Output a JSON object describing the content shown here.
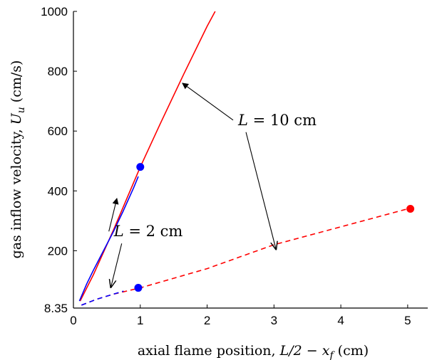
{
  "chart_data": {
    "type": "line",
    "xlabel": {
      "prefix": "axial flame position, ",
      "math": "L/2 − x",
      "math_sub": "f",
      "suffix": " (cm)"
    },
    "ylabel": {
      "prefix": "gas inflow velocity, ",
      "math": "U",
      "math_sub": "u",
      "suffix": " (cm/s)"
    },
    "xlim": [
      0,
      5.3
    ],
    "ylim": [
      8.35,
      1000
    ],
    "xticks": [
      0,
      1,
      2,
      3,
      4,
      5
    ],
    "yticks": [
      8.35,
      200,
      400,
      600,
      800,
      1000
    ],
    "ytick_labels": [
      "8.35",
      "200",
      "400",
      "600",
      "800",
      "1000"
    ],
    "grid": false,
    "series": [
      {
        "color": "#ff0000",
        "style": "solid",
        "points": [
          [
            0.1,
            32
          ],
          [
            0.3,
            120
          ],
          [
            0.6,
            270
          ],
          [
            0.8,
            375
          ],
          [
            1.0,
            480
          ],
          [
            1.3,
            625
          ],
          [
            1.65,
            790
          ],
          [
            2.0,
            950
          ],
          [
            2.12,
            1000
          ]
        ]
      },
      {
        "color": "#0000ff",
        "style": "solid",
        "points": [
          [
            0.09,
            32
          ],
          [
            0.14,
            58
          ],
          [
            0.2,
            90
          ],
          [
            0.3,
            135
          ],
          [
            0.45,
            200
          ],
          [
            0.6,
            265
          ],
          [
            0.75,
            335
          ],
          [
            0.9,
            410
          ],
          [
            0.97,
            448
          ]
        ]
      },
      {
        "color": "#ff0000",
        "style": "dashed",
        "points": [
          [
            0.12,
            18
          ],
          [
            0.35,
            38
          ],
          [
            0.6,
            55
          ],
          [
            1.0,
            76
          ],
          [
            1.5,
            108
          ],
          [
            2.0,
            140
          ],
          [
            2.5,
            180
          ],
          [
            3.0,
            220
          ],
          [
            3.5,
            250
          ],
          [
            4.0,
            280
          ],
          [
            4.5,
            310
          ],
          [
            5.0,
            340
          ]
        ]
      },
      {
        "color": "#0000ff",
        "style": "dashed",
        "points": [
          [
            0.12,
            18
          ],
          [
            0.35,
            38
          ],
          [
            0.6,
            55
          ],
          [
            0.75,
            65
          ]
        ]
      }
    ],
    "markers": [
      {
        "x": 1.0,
        "y": 480,
        "color": "#0000ff"
      },
      {
        "x": 0.97,
        "y": 76,
        "color": "#0000ff"
      },
      {
        "x": 5.04,
        "y": 340,
        "color": "#ff0000"
      }
    ],
    "annotations": [
      {
        "label_prefix": "L",
        "label_suffix": " = 10 cm",
        "text_pos": [
          3.05,
          620
        ],
        "arrows": [
          {
            "to": [
              1.63,
              760
            ],
            "head": "filled"
          },
          {
            "to": [
              3.03,
              205
            ],
            "head": "open"
          }
        ]
      },
      {
        "label_prefix": "L",
        "label_suffix": " = 2 cm",
        "text_pos": [
          1.12,
          248
        ],
        "arrows": [
          {
            "to": [
              0.65,
              375
            ],
            "head": "filled"
          },
          {
            "to": [
              0.56,
              78
            ],
            "head": "open"
          }
        ]
      }
    ]
  }
}
